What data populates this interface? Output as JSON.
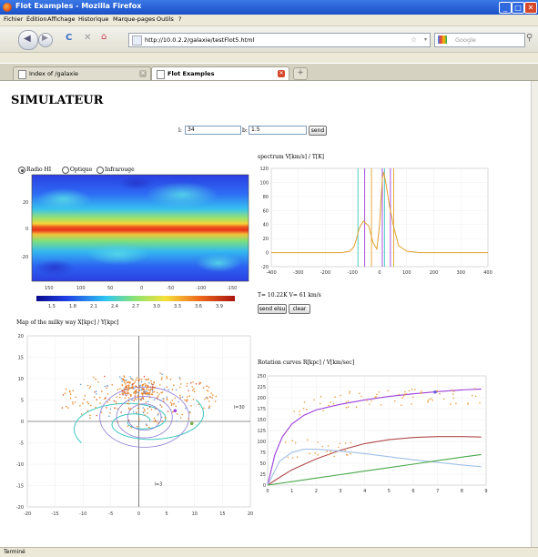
{
  "window": {
    "title": "Flot Examples - Mozilla Firefox"
  },
  "menu": [
    "Fichier",
    "Édition",
    "Affichage",
    "Historique",
    "Marque-pages",
    "Outils",
    "?"
  ],
  "nav": {
    "url": "http://10.0.2.2/galaxie/testFlot5.html",
    "search_placeholder": "Google"
  },
  "tabs": [
    {
      "label": "Index of /galaxie",
      "active": false
    },
    {
      "label": "Flot Examples",
      "active": true
    }
  ],
  "page": {
    "title": "SIMULATEUR",
    "form": {
      "l_label": "l:",
      "l_value": "34",
      "b_label": "b:",
      "b_value": "1.5",
      "send_label": "send"
    },
    "radios": [
      {
        "label": "Radio HI",
        "checked": true
      },
      {
        "label": "Optique",
        "checked": false
      },
      {
        "label": "Infrarouge",
        "checked": false
      }
    ],
    "map_axis": {
      "y_ticks": [
        "20",
        "0",
        "-20"
      ],
      "x_ticks": [
        "150",
        "100",
        "50",
        "0",
        "-50",
        "-100",
        "-150"
      ],
      "colorbar_ticks": [
        "1.5",
        "1.8",
        "2.1",
        "2.4",
        "2.7",
        "3.0",
        "3.3",
        "3.6",
        "3.9"
      ]
    },
    "spectrum": {
      "title": "spectrum V[km/s] / T[K]",
      "readout": "T= 10.22K V= 61 km/s",
      "send_label": "send elsu",
      "clear_label": "clear",
      "x_ticks": [
        "-400",
        "-300",
        "-200",
        "-100",
        "0",
        "100",
        "200",
        "300",
        "400"
      ],
      "y_ticks": [
        "120",
        "100",
        "80",
        "60",
        "40",
        "20",
        "0",
        "-20"
      ]
    },
    "milkyway": {
      "title": "Map of the milky way X[kpc] / Y[kpc]",
      "x_ticks": [
        "-20",
        "-15",
        "-10",
        "-5",
        "0",
        "5",
        "10",
        "15",
        "20"
      ],
      "y_ticks": [
        "20",
        "15",
        "10",
        "5",
        "0",
        "-5",
        "-10",
        "-15",
        "-20"
      ],
      "annotations": [
        "l=30",
        "l=3"
      ]
    },
    "rotation": {
      "title": "Rotation curves R[kpc] / V[km/sec]",
      "x_ticks": [
        "0",
        "1",
        "2",
        "3",
        "4",
        "5",
        "6",
        "7",
        "8",
        "9"
      ],
      "y_ticks": [
        "250",
        "225",
        "200",
        "175",
        "150",
        "125",
        "100",
        "75",
        "50",
        "25",
        "0"
      ]
    }
  },
  "status": {
    "text": "Terminé"
  },
  "colors": {
    "titlebar": "#2a62d8",
    "spectrum_line": "#e0a030",
    "purple": "#9b3fd9",
    "cyan": "#3cc7c0"
  },
  "chart_data": [
    {
      "type": "line",
      "title": "spectrum V[km/s] / T[K]",
      "xlim": [
        -400,
        400
      ],
      "ylim": [
        -20,
        120
      ],
      "series": [
        {
          "x": [
            -400,
            -200,
            -140,
            -110,
            -95,
            -85,
            -75,
            -60,
            -40,
            -25,
            -10,
            0,
            10,
            15,
            25,
            35,
            50,
            70,
            100,
            150,
            400
          ],
          "y": [
            0,
            0,
            0,
            2,
            8,
            20,
            35,
            45,
            38,
            15,
            5,
            40,
            105,
            115,
            95,
            70,
            40,
            10,
            2,
            0,
            0
          ]
        }
      ]
    },
    {
      "type": "line",
      "title": "Rotation curves R[kpc] / V[km/sec]",
      "xlim": [
        0,
        9
      ],
      "ylim": [
        0,
        250
      ],
      "series": [
        {
          "x": [
            0,
            0.3,
            0.6,
            1,
            1.5,
            2,
            3,
            4,
            5,
            6,
            7,
            8,
            8.8
          ],
          "y": [
            0,
            70,
            110,
            140,
            160,
            172,
            185,
            195,
            203,
            209,
            214,
            218,
            220
          ]
        },
        {
          "x": [
            0,
            0.5,
            1,
            2,
            3,
            4,
            5,
            6,
            7,
            8,
            8.8
          ],
          "y": [
            0,
            18,
            35,
            60,
            80,
            95,
            104,
            109,
            111,
            111,
            110
          ]
        },
        {
          "x": [
            0,
            0.5,
            1,
            1.5,
            2,
            3,
            4,
            5,
            6,
            7,
            8,
            8.8
          ],
          "y": [
            0,
            55,
            75,
            82,
            82,
            78,
            72,
            65,
            58,
            52,
            46,
            42
          ]
        },
        {
          "x": [
            0,
            1,
            2,
            3,
            4,
            5,
            6,
            7,
            8,
            8.8
          ],
          "y": [
            0,
            8,
            16,
            24,
            32,
            40,
            48,
            56,
            64,
            70
          ]
        }
      ]
    }
  ]
}
